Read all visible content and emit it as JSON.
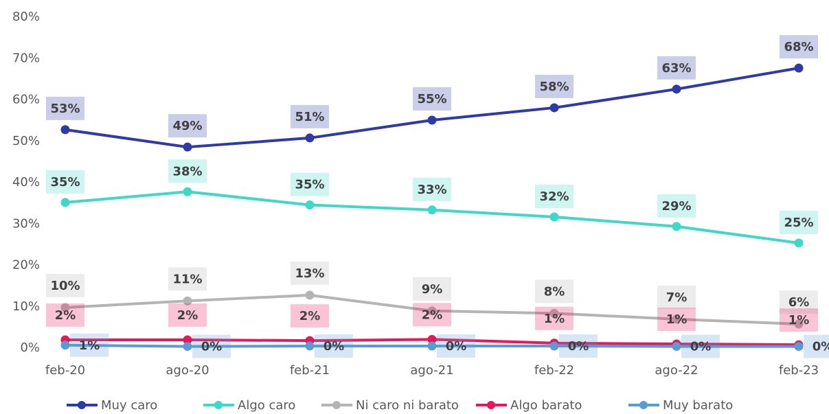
{
  "chart_data": {
    "type": "line",
    "categories": [
      "feb-20",
      "ago-20",
      "feb-21",
      "ago-21",
      "feb-22",
      "ago-22",
      "feb-23"
    ],
    "ylim": [
      0,
      80
    ],
    "yticks": [
      {
        "value": 0,
        "label": "0%"
      },
      {
        "value": 10,
        "label": "10%"
      },
      {
        "value": 20,
        "label": "20%"
      },
      {
        "value": 30,
        "label": "30%"
      },
      {
        "value": 40,
        "label": "40%"
      },
      {
        "value": 50,
        "label": "50%"
      },
      {
        "value": 60,
        "label": "60%"
      },
      {
        "value": 70,
        "label": "70%"
      },
      {
        "value": 80,
        "label": "80%"
      }
    ],
    "grid": false,
    "legend": "bottom",
    "series": [
      {
        "name": "Muy caro",
        "color": "#2f3aa6",
        "values": [
          52.8,
          48.6,
          50.8,
          55.1,
          58.1,
          62.6,
          67.7
        ],
        "value_labels": [
          "53%",
          "49%",
          "51%",
          "55%",
          "58%",
          "63%",
          "68%"
        ]
      },
      {
        "name": "Algo caro",
        "color": "#3ed8c9",
        "values": [
          35.2,
          37.8,
          34.6,
          33.4,
          31.7,
          29.4,
          25.4
        ],
        "value_labels": [
          "35%",
          "38%",
          "35%",
          "33%",
          "32%",
          "29%",
          "25%"
        ]
      },
      {
        "name": "Ni caro ni barato",
        "color": "#b4b4b4",
        "values": [
          9.8,
          11.4,
          12.8,
          9.0,
          8.4,
          7.0,
          5.8
        ],
        "value_labels": [
          "10%",
          "11%",
          "13%",
          "9%",
          "8%",
          "7%",
          "6%"
        ]
      },
      {
        "name": "Algo barato",
        "color": "#e8175d",
        "values": [
          2.0,
          2.0,
          1.8,
          2.1,
          1.2,
          1.0,
          0.8
        ],
        "value_labels": [
          "2%",
          "2%",
          "2%",
          "2%",
          "1%",
          "1%",
          "1%"
        ]
      },
      {
        "name": "Muy barato",
        "color": "#5b9bd5",
        "values": [
          0.7,
          0.4,
          0.5,
          0.5,
          0.5,
          0.4,
          0.4
        ],
        "value_labels": [
          "1%",
          "0%",
          "0%",
          "0%",
          "0%",
          "0%",
          "0%"
        ]
      }
    ]
  }
}
